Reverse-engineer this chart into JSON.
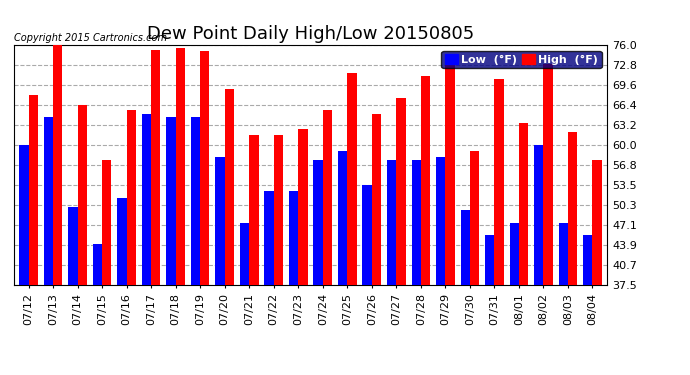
{
  "title": "Dew Point Daily High/Low 20150805",
  "copyright": "Copyright 2015 Cartronics.com",
  "dates": [
    "07/12",
    "07/13",
    "07/14",
    "07/15",
    "07/16",
    "07/17",
    "07/18",
    "07/19",
    "07/20",
    "07/21",
    "07/22",
    "07/23",
    "07/24",
    "07/25",
    "07/26",
    "07/27",
    "07/28",
    "07/29",
    "07/30",
    "07/31",
    "08/01",
    "08/02",
    "08/03",
    "08/04"
  ],
  "high_values": [
    68.0,
    76.0,
    66.4,
    57.5,
    65.6,
    75.2,
    75.5,
    75.0,
    69.0,
    61.5,
    61.5,
    62.5,
    65.5,
    71.5,
    65.0,
    67.5,
    71.0,
    74.0,
    59.0,
    70.5,
    63.5,
    73.0,
    62.0,
    57.5
  ],
  "low_values": [
    60.0,
    64.5,
    50.0,
    44.0,
    51.5,
    65.0,
    64.5,
    64.5,
    58.0,
    47.5,
    52.5,
    52.5,
    57.5,
    59.0,
    53.5,
    57.5,
    57.5,
    58.0,
    49.5,
    45.5,
    47.5,
    60.0,
    47.5,
    45.5
  ],
  "high_color": "#ff0000",
  "low_color": "#0000ff",
  "bg_color": "#ffffff",
  "plot_bg_color": "#ffffff",
  "grid_color": "#aaaaaa",
  "ymin": 37.5,
  "ymax": 76.0,
  "yticks": [
    37.5,
    40.7,
    43.9,
    47.1,
    50.3,
    53.5,
    56.8,
    60.0,
    63.2,
    66.4,
    69.6,
    72.8,
    76.0
  ],
  "bar_width": 0.38,
  "title_fontsize": 13,
  "tick_fontsize": 8,
  "copyright_fontsize": 7,
  "legend_fontsize": 8
}
